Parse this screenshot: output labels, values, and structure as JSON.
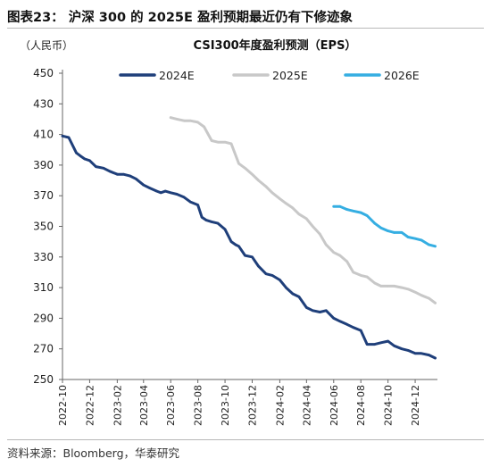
{
  "figure": {
    "title": "图表23：  沪深 300 的 2025E 盈利预期最近仍有下修迹象",
    "source": "资料来源：Bloomberg，华泰研究"
  },
  "chart_data": {
    "type": "line",
    "title": "CSI300年度盈利预测（EPS）",
    "unit_label": "（人民币）",
    "ylim": [
      250,
      450
    ],
    "yticks": [
      250,
      270,
      290,
      310,
      330,
      350,
      370,
      390,
      410,
      430,
      450
    ],
    "xlim": [
      "2022-10-01",
      "2025-01-20"
    ],
    "xticks": [
      "2022-10",
      "2022-12",
      "2023-02",
      "2023-04",
      "2023-06",
      "2023-08",
      "2023-10",
      "2023-12",
      "2024-02",
      "2024-04",
      "2024-06",
      "2024-08",
      "2024-10",
      "2024-12"
    ],
    "grid": false,
    "legend_position": "top",
    "colors": [
      "#1f3f7a",
      "#c8c8c8",
      "#35aee2"
    ],
    "series": [
      {
        "name": "2024E",
        "color": "#1f3f7a",
        "x": [
          "2022-10-01",
          "2022-10-15",
          "2022-11-01",
          "2022-11-10",
          "2022-11-20",
          "2022-12-01",
          "2022-12-15",
          "2023-01-01",
          "2023-01-15",
          "2023-02-01",
          "2023-02-15",
          "2023-03-01",
          "2023-03-15",
          "2023-04-01",
          "2023-04-15",
          "2023-05-01",
          "2023-05-10",
          "2023-05-20",
          "2023-06-01",
          "2023-06-15",
          "2023-07-01",
          "2023-07-15",
          "2023-08-01",
          "2023-08-10",
          "2023-08-20",
          "2023-09-01",
          "2023-09-15",
          "2023-10-01",
          "2023-10-15",
          "2023-10-25",
          "2023-11-01",
          "2023-11-15",
          "2023-12-01",
          "2023-12-15",
          "2024-01-01",
          "2024-01-15",
          "2024-02-01",
          "2024-02-15",
          "2024-03-01",
          "2024-03-15",
          "2024-04-01",
          "2024-04-15",
          "2024-05-01",
          "2024-05-15",
          "2024-06-01",
          "2024-06-15",
          "2024-07-01",
          "2024-07-15",
          "2024-08-01",
          "2024-08-15",
          "2024-09-01",
          "2024-09-15",
          "2024-10-01",
          "2024-10-15",
          "2024-11-01",
          "2024-11-15",
          "2024-12-01",
          "2024-12-15",
          "2025-01-01",
          "2025-01-15"
        ],
        "values": [
          409,
          408,
          398,
          396,
          394,
          393,
          389,
          388,
          386,
          384,
          384,
          383,
          381,
          377,
          375,
          373,
          372,
          373,
          372,
          371,
          369,
          366,
          364,
          356,
          354,
          353,
          352,
          348,
          340,
          338,
          337,
          331,
          330,
          324,
          319,
          318,
          315,
          310,
          306,
          304,
          297,
          295,
          294,
          295,
          290,
          288,
          286,
          284,
          282,
          273,
          273,
          274,
          275,
          272,
          270,
          269,
          267,
          267,
          266,
          264
        ]
      },
      {
        "name": "2025E",
        "color": "#c8c8c8",
        "x": [
          "2023-06-01",
          "2023-06-15",
          "2023-07-01",
          "2023-07-15",
          "2023-08-01",
          "2023-08-15",
          "2023-09-01",
          "2023-09-15",
          "2023-10-01",
          "2023-10-15",
          "2023-11-01",
          "2023-11-15",
          "2023-12-01",
          "2023-12-15",
          "2024-01-01",
          "2024-01-15",
          "2024-02-01",
          "2024-02-15",
          "2024-03-01",
          "2024-03-15",
          "2024-04-01",
          "2024-04-15",
          "2024-05-01",
          "2024-05-15",
          "2024-06-01",
          "2024-06-15",
          "2024-07-01",
          "2024-07-15",
          "2024-08-01",
          "2024-08-15",
          "2024-09-01",
          "2024-09-15",
          "2024-10-01",
          "2024-10-15",
          "2024-11-01",
          "2024-11-15",
          "2024-12-01",
          "2024-12-15",
          "2025-01-01",
          "2025-01-15"
        ],
        "values": [
          421,
          420,
          419,
          419,
          418,
          415,
          406,
          405,
          405,
          404,
          391,
          388,
          384,
          380,
          376,
          372,
          368,
          365,
          362,
          358,
          355,
          350,
          345,
          338,
          333,
          331,
          327,
          320,
          318,
          317,
          313,
          311,
          311,
          311,
          310,
          309,
          307,
          305,
          303,
          300
        ]
      },
      {
        "name": "2026E",
        "color": "#35aee2",
        "x": [
          "2024-06-01",
          "2024-06-15",
          "2024-07-01",
          "2024-07-15",
          "2024-08-01",
          "2024-08-15",
          "2024-09-01",
          "2024-09-15",
          "2024-10-01",
          "2024-10-15",
          "2024-11-01",
          "2024-11-15",
          "2024-12-01",
          "2024-12-15",
          "2025-01-01",
          "2025-01-15"
        ],
        "values": [
          363,
          363,
          361,
          360,
          359,
          357,
          352,
          349,
          347,
          346,
          346,
          343,
          342,
          341,
          338,
          337
        ]
      }
    ]
  }
}
